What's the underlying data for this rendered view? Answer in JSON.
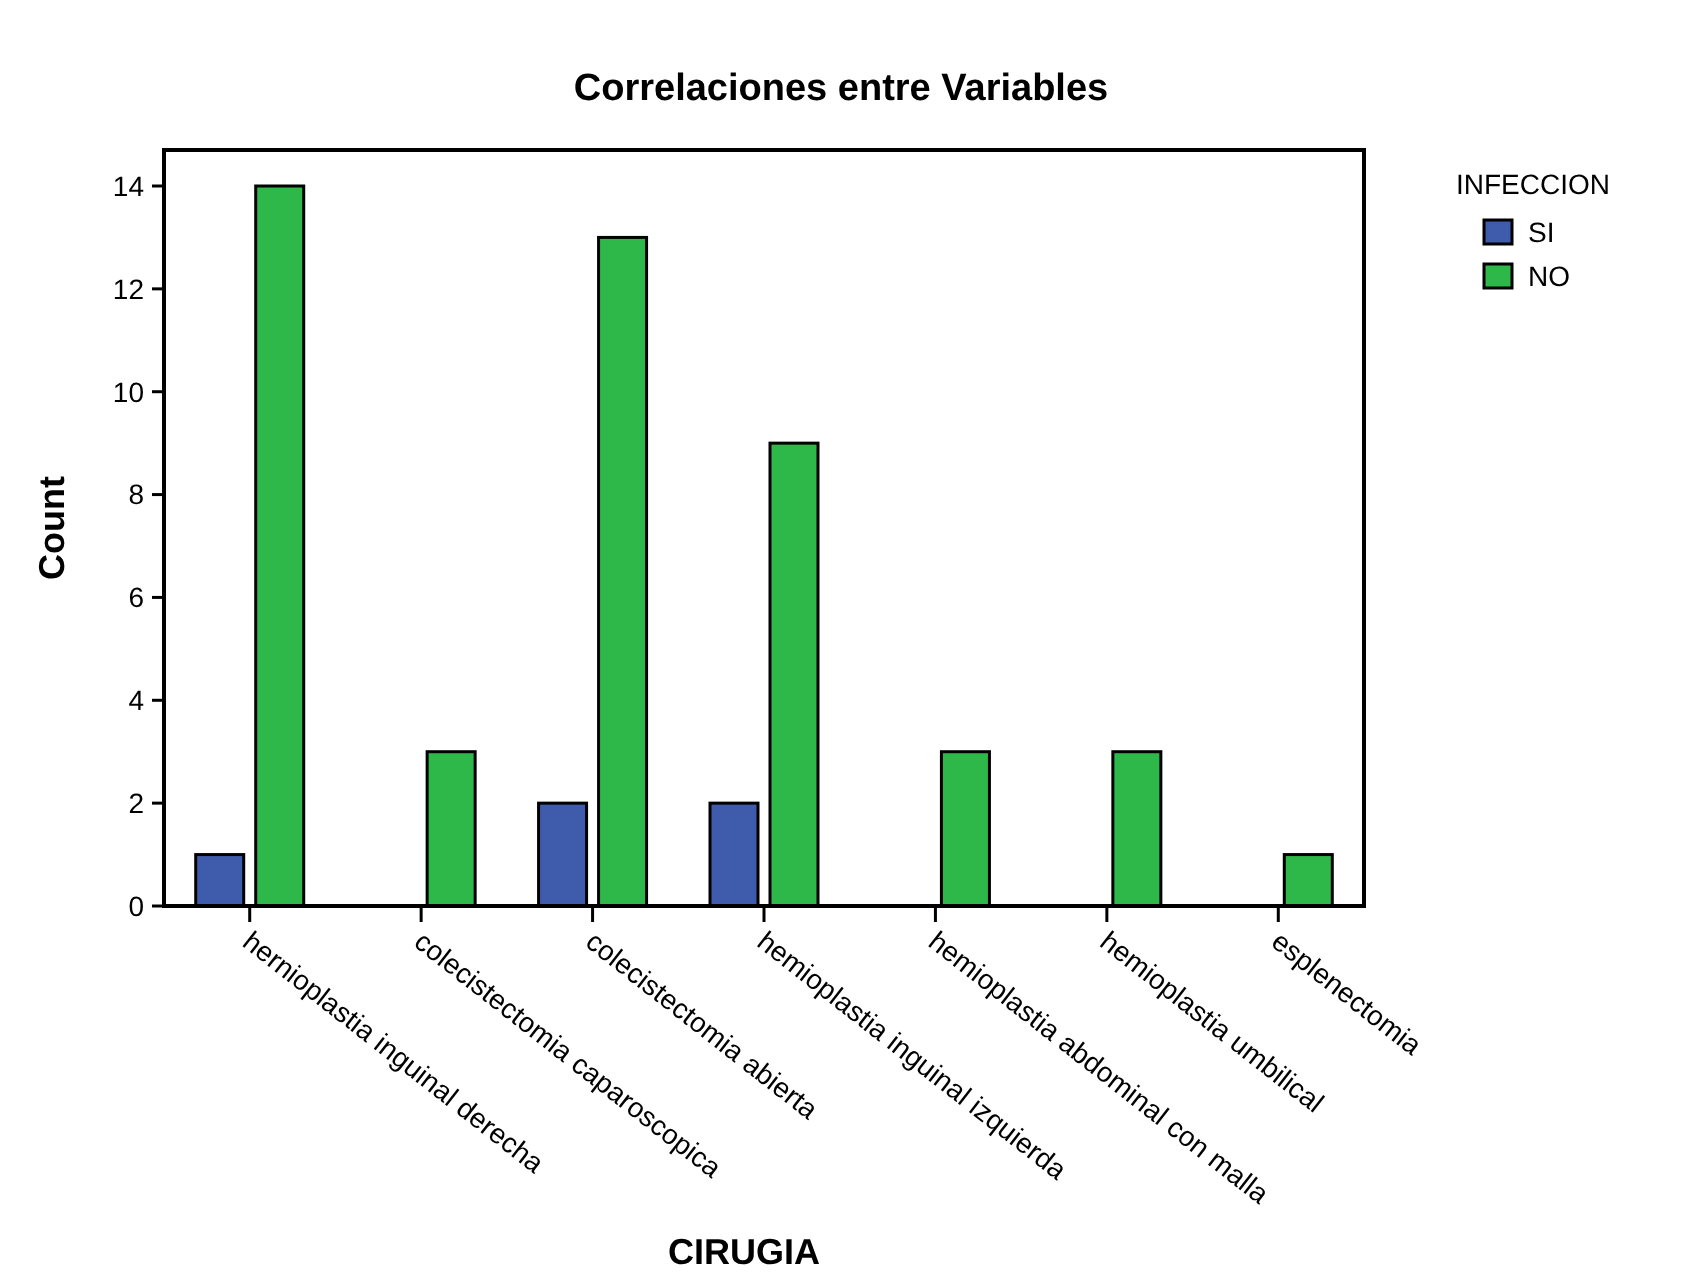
{
  "chart_data": {
    "type": "bar",
    "title": "Correlaciones entre Variables",
    "xlabel": "CIRUGIA",
    "ylabel": "Count",
    "legend_title": "INFECCION",
    "legend": "top right",
    "categories": [
      "hernioplastia inguinal derecha",
      "colecistectomia caparoscopica",
      "colecistectomia abierta",
      "hemioplastia inguinal izquierda",
      "hemioplastia abdominal con malla",
      "hemioplastia umbilical",
      "esplenectomia"
    ],
    "series": [
      {
        "name": "SI",
        "color": "#3f5bab",
        "values": [
          1,
          0,
          2,
          2,
          0,
          0,
          0
        ]
      },
      {
        "name": "NO",
        "color": "#2fb84a",
        "values": [
          14,
          3,
          13,
          9,
          3,
          3,
          1
        ]
      }
    ],
    "ylim": [
      0,
      14.7
    ],
    "yticks": [
      0,
      2,
      4,
      6,
      8,
      10,
      12,
      14
    ],
    "grid": false
  }
}
